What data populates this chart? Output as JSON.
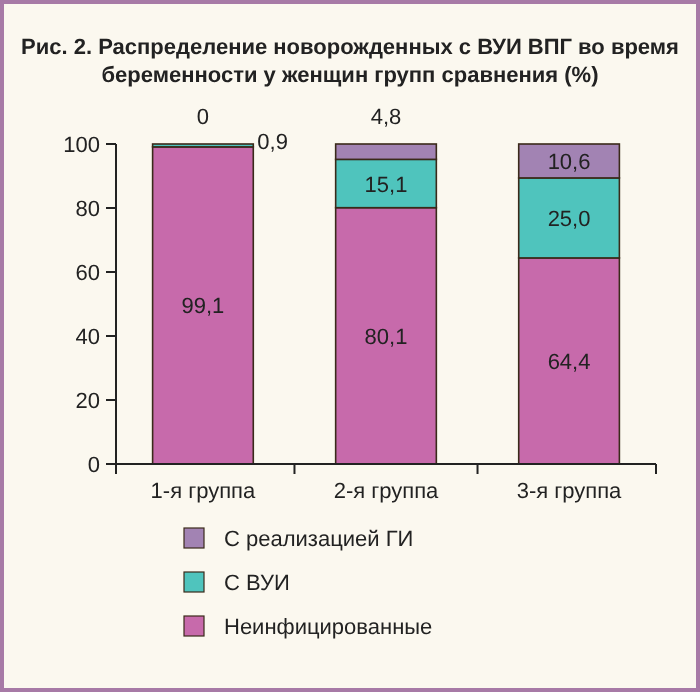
{
  "chart_data": {
    "type": "bar",
    "stacked": true,
    "title": "Рис. 2. Распределение новорожденных с ВУИ ВПГ во время беременности у женщин групп сравнения (%)",
    "categories": [
      "1-я группа",
      "2-я группа",
      "3-я группа"
    ],
    "series": [
      {
        "name": "Неинфицированные",
        "color": "#c76aab",
        "values": [
          99.1,
          80.1,
          64.4
        ],
        "value_labels": [
          "99,1",
          "80,1",
          "64,4"
        ]
      },
      {
        "name": "С ВУИ",
        "color": "#4fc4bd",
        "values": [
          0.9,
          15.1,
          25.0
        ],
        "value_labels": [
          "0,9",
          "15,1",
          "25,0"
        ]
      },
      {
        "name": "С реализацией ГИ",
        "color": "#a283b3",
        "values": [
          0,
          4.8,
          10.6
        ],
        "value_labels": [
          "0",
          "4,8",
          "10,6"
        ]
      }
    ],
    "ylim": [
      0,
      100
    ],
    "yticks": [
      0,
      20,
      40,
      60,
      80,
      100
    ],
    "grid": false,
    "legend": "bottom"
  }
}
